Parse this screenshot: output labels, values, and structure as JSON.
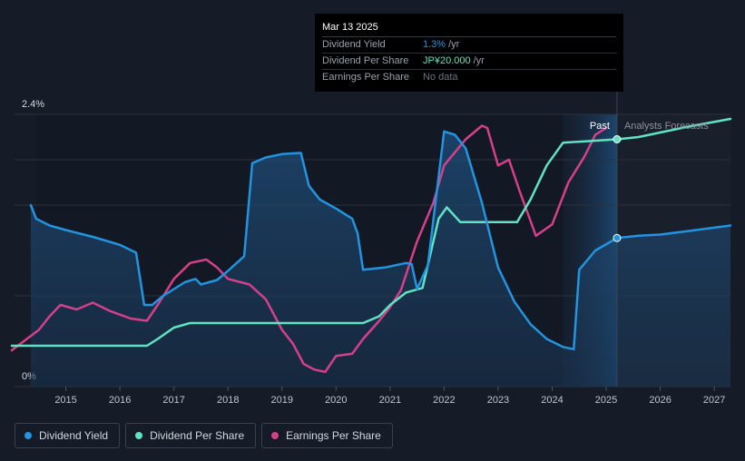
{
  "tooltip": {
    "date": "Mar 13 2025",
    "rows": [
      {
        "label": "Dividend Yield",
        "value": "1.3%",
        "unit": "/yr",
        "color": "#2394df"
      },
      {
        "label": "Dividend Per Share",
        "value": "JP¥20.000",
        "unit": "/yr",
        "color": "#5fe3c3"
      },
      {
        "label": "Earnings Per Share",
        "value": "No data",
        "unit": "",
        "color": "#6b727c"
      }
    ]
  },
  "legend": [
    {
      "label": "Dividend Yield",
      "color": "#2394df"
    },
    {
      "label": "Dividend Per Share",
      "color": "#5fe3c3"
    },
    {
      "label": "Earnings Per Share",
      "color": "#d6408a"
    }
  ],
  "chart_data": {
    "type": "line",
    "y_labels": {
      "top": "2.4%",
      "bottom": "0%"
    },
    "ylim": [
      0,
      2.4
    ],
    "xlim": [
      2014.05,
      2027.3
    ],
    "x_ticks": [
      "2015",
      "2016",
      "2017",
      "2018",
      "2019",
      "2020",
      "2021",
      "2022",
      "2023",
      "2024",
      "2025",
      "2026",
      "2027"
    ],
    "past_label": "Past",
    "forecast_label": "Analysts Forecasts",
    "forecast_start": 2025.2,
    "shaded_start": 2024.2,
    "grid": true,
    "series": [
      {
        "name": "Dividend Yield",
        "color": "#2394df",
        "fill": true,
        "points": [
          [
            2014.35,
            1.6
          ],
          [
            2014.45,
            1.48
          ],
          [
            2014.7,
            1.42
          ],
          [
            2015.0,
            1.38
          ],
          [
            2015.5,
            1.32
          ],
          [
            2016.0,
            1.25
          ],
          [
            2016.3,
            1.18
          ],
          [
            2016.45,
            0.72
          ],
          [
            2016.6,
            0.72
          ],
          [
            2016.8,
            0.8
          ],
          [
            2017.2,
            0.92
          ],
          [
            2017.4,
            0.95
          ],
          [
            2017.5,
            0.9
          ],
          [
            2017.8,
            0.94
          ],
          [
            2018.0,
            1.02
          ],
          [
            2018.3,
            1.15
          ],
          [
            2018.45,
            1.97
          ],
          [
            2018.7,
            2.02
          ],
          [
            2019.0,
            2.05
          ],
          [
            2019.35,
            2.06
          ],
          [
            2019.5,
            1.77
          ],
          [
            2019.7,
            1.65
          ],
          [
            2020.0,
            1.57
          ],
          [
            2020.3,
            1.48
          ],
          [
            2020.4,
            1.35
          ],
          [
            2020.5,
            1.03
          ],
          [
            2020.9,
            1.05
          ],
          [
            2021.3,
            1.09
          ],
          [
            2021.4,
            1.08
          ],
          [
            2021.5,
            0.86
          ],
          [
            2021.7,
            1.07
          ],
          [
            2022.0,
            2.25
          ],
          [
            2022.2,
            2.22
          ],
          [
            2022.4,
            2.1
          ],
          [
            2022.7,
            1.62
          ],
          [
            2023.0,
            1.05
          ],
          [
            2023.3,
            0.75
          ],
          [
            2023.6,
            0.55
          ],
          [
            2023.9,
            0.42
          ],
          [
            2024.2,
            0.35
          ],
          [
            2024.4,
            0.33
          ],
          [
            2024.5,
            1.03
          ],
          [
            2024.8,
            1.2
          ],
          [
            2025.2,
            1.31
          ],
          [
            2025.6,
            1.33
          ],
          [
            2026.0,
            1.34
          ],
          [
            2026.5,
            1.37
          ],
          [
            2027.3,
            1.42
          ]
        ]
      },
      {
        "name": "Dividend Per Share",
        "color": "#5fe3c3",
        "fill": false,
        "points": [
          [
            2014.0,
            0.36
          ],
          [
            2016.5,
            0.36
          ],
          [
            2016.7,
            0.42
          ],
          [
            2017.0,
            0.52
          ],
          [
            2017.3,
            0.56
          ],
          [
            2020.5,
            0.56
          ],
          [
            2020.8,
            0.62
          ],
          [
            2021.0,
            0.72
          ],
          [
            2021.3,
            0.83
          ],
          [
            2021.6,
            0.87
          ],
          [
            2021.9,
            1.48
          ],
          [
            2022.05,
            1.58
          ],
          [
            2022.3,
            1.45
          ],
          [
            2023.35,
            1.45
          ],
          [
            2023.6,
            1.65
          ],
          [
            2023.9,
            1.95
          ],
          [
            2024.2,
            2.15
          ],
          [
            2025.2,
            2.18
          ],
          [
            2025.6,
            2.2
          ],
          [
            2026.0,
            2.24
          ],
          [
            2026.5,
            2.29
          ],
          [
            2027.3,
            2.36
          ]
        ]
      },
      {
        "name": "Earnings Per Share",
        "color": "#d6408a",
        "fill": false,
        "points": [
          [
            2014.0,
            0.32
          ],
          [
            2014.5,
            0.5
          ],
          [
            2014.7,
            0.62
          ],
          [
            2014.9,
            0.72
          ],
          [
            2015.2,
            0.68
          ],
          [
            2015.5,
            0.74
          ],
          [
            2015.8,
            0.67
          ],
          [
            2016.2,
            0.6
          ],
          [
            2016.5,
            0.58
          ],
          [
            2016.7,
            0.72
          ],
          [
            2017.0,
            0.95
          ],
          [
            2017.3,
            1.09
          ],
          [
            2017.6,
            1.12
          ],
          [
            2017.8,
            1.05
          ],
          [
            2018.0,
            0.95
          ],
          [
            2018.4,
            0.9
          ],
          [
            2018.7,
            0.77
          ],
          [
            2019.0,
            0.5
          ],
          [
            2019.2,
            0.38
          ],
          [
            2019.4,
            0.2
          ],
          [
            2019.6,
            0.15
          ],
          [
            2019.8,
            0.13
          ],
          [
            2020.0,
            0.27
          ],
          [
            2020.3,
            0.29
          ],
          [
            2020.5,
            0.42
          ],
          [
            2020.8,
            0.58
          ],
          [
            2021.0,
            0.7
          ],
          [
            2021.2,
            0.85
          ],
          [
            2021.5,
            1.28
          ],
          [
            2021.8,
            1.62
          ],
          [
            2022.0,
            1.95
          ],
          [
            2022.4,
            2.18
          ],
          [
            2022.7,
            2.3
          ],
          [
            2022.8,
            2.28
          ],
          [
            2023.0,
            1.95
          ],
          [
            2023.2,
            2.0
          ],
          [
            2023.4,
            1.72
          ],
          [
            2023.7,
            1.33
          ],
          [
            2024.0,
            1.43
          ],
          [
            2024.3,
            1.8
          ],
          [
            2024.6,
            2.03
          ],
          [
            2024.8,
            2.22
          ],
          [
            2025.0,
            2.28
          ]
        ]
      }
    ],
    "markers": [
      {
        "series": "Dividend Yield",
        "x": 2025.2,
        "y": 1.31
      },
      {
        "series": "Dividend Per Share",
        "x": 2025.2,
        "y": 2.18
      }
    ]
  }
}
